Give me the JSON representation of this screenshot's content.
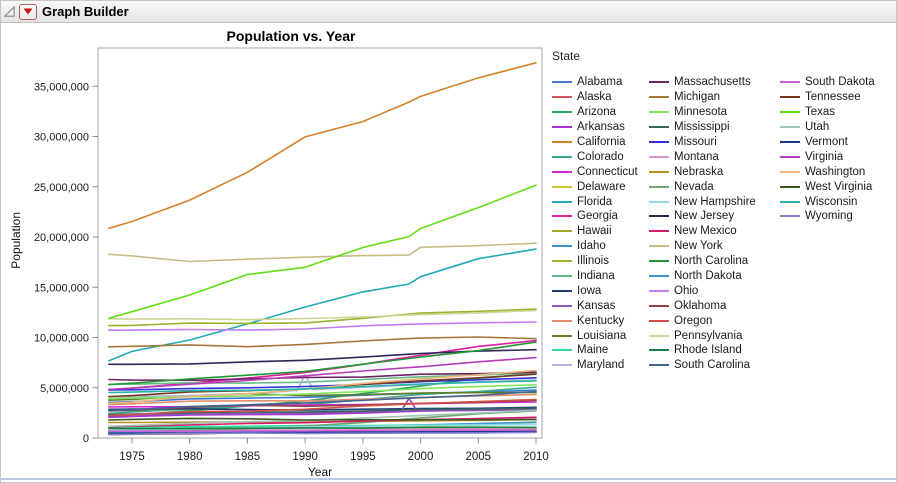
{
  "header": {
    "title": "Graph Builder"
  },
  "chart_data": {
    "type": "line",
    "title": "Population vs. Year",
    "xlabel": "Year",
    "ylabel": "Population",
    "legend_title": "State",
    "legend_position": "right",
    "grid": false,
    "xlim": [
      1972,
      2010.6
    ],
    "ylim": [
      0,
      38800000
    ],
    "x_ticks": [
      1975,
      1980,
      1985,
      1990,
      1995,
      2000,
      2005,
      2010
    ],
    "y_ticks": [
      0,
      5000000,
      10000000,
      15000000,
      20000000,
      25000000,
      30000000,
      35000000
    ],
    "y_tick_labels": [
      "0",
      "5,000,000",
      "10,000,000",
      "15,000,000",
      "20,000,000",
      "25,000,000",
      "30,000,000",
      "35,000,000"
    ],
    "years": [
      1973,
      1975,
      1980,
      1985,
      1990,
      1995,
      1999,
      2000,
      2005,
      2010
    ],
    "series": [
      {
        "name": "Alabama",
        "color": "#4573D2",
        "values": [
          3540000,
          3610000,
          3890000,
          3970000,
          4050000,
          4260000,
          4410000,
          4450000,
          4570000,
          4780000
        ]
      },
      {
        "name": "Alaska",
        "color": "#D4525A",
        "values": [
          330000,
          380000,
          400000,
          530000,
          550000,
          600000,
          620000,
          630000,
          660000,
          710000
        ]
      },
      {
        "name": "Arizona",
        "color": "#2AA458",
        "values": [
          2120000,
          2280000,
          2720000,
          3180000,
          3680000,
          4430000,
          5010000,
          5160000,
          5940000,
          6410000
        ]
      },
      {
        "name": "Arkansas",
        "color": "#AE2FD6",
        "values": [
          2060000,
          2140000,
          2290000,
          2330000,
          2350000,
          2480000,
          2640000,
          2680000,
          2780000,
          2920000
        ]
      },
      {
        "name": "California",
        "color": "#D4812C",
        "values": [
          20870000,
          21540000,
          23670000,
          26440000,
          29960000,
          31490000,
          33420000,
          33990000,
          35830000,
          37330000
        ]
      },
      {
        "name": "Colorado",
        "color": "#2FAE93",
        "values": [
          2450000,
          2590000,
          2890000,
          3210000,
          3300000,
          3810000,
          4230000,
          4330000,
          4630000,
          5050000
        ]
      },
      {
        "name": "Connecticut",
        "color": "#D326D9",
        "values": [
          3080000,
          3100000,
          3110000,
          3200000,
          3290000,
          3320000,
          3390000,
          3410000,
          3510000,
          3580000
        ]
      },
      {
        "name": "Delaware",
        "color": "#D2C42E",
        "values": [
          570000,
          580000,
          590000,
          620000,
          670000,
          720000,
          770000,
          790000,
          850000,
          900000
        ]
      },
      {
        "name": "Florida",
        "color": "#24A8B4",
        "values": [
          7680000,
          8620000,
          9750000,
          11350000,
          13030000,
          14540000,
          15320000,
          16050000,
          17840000,
          18800000
        ]
      },
      {
        "name": "Georgia",
        "color": "#DE1E9E",
        "values": [
          4790000,
          4960000,
          5460000,
          5960000,
          6510000,
          7330000,
          8050000,
          8230000,
          9110000,
          9690000
        ]
      },
      {
        "name": "Hawaii",
        "color": "#A5A524",
        "values": [
          840000,
          870000,
          960000,
          1040000,
          1110000,
          1180000,
          1200000,
          1210000,
          1290000,
          1360000
        ]
      },
      {
        "name": "Idaho",
        "color": "#3B94CE",
        "values": [
          770000,
          820000,
          940000,
          1000000,
          1010000,
          1180000,
          1280000,
          1300000,
          1430000,
          1570000
        ]
      },
      {
        "name": "Illinois",
        "color": "#97B42C",
        "values": [
          11180000,
          11200000,
          11430000,
          11400000,
          11450000,
          11910000,
          12330000,
          12430000,
          12610000,
          12830000
        ]
      },
      {
        "name": "Indiana",
        "color": "#63BB86",
        "values": [
          5320000,
          5350000,
          5490000,
          5460000,
          5550000,
          5820000,
          6040000,
          6090000,
          6260000,
          6480000
        ]
      },
      {
        "name": "Iowa",
        "color": "#1D3D78",
        "values": [
          2860000,
          2880000,
          2910000,
          2830000,
          2780000,
          2870000,
          2920000,
          2930000,
          2960000,
          3050000
        ]
      },
      {
        "name": "Kansas",
        "color": "#9051BA",
        "values": [
          2260000,
          2280000,
          2370000,
          2430000,
          2480000,
          2580000,
          2670000,
          2690000,
          2740000,
          2850000
        ]
      },
      {
        "name": "Kentucky",
        "color": "#E38C6C",
        "values": [
          3310000,
          3400000,
          3660000,
          3700000,
          3690000,
          3860000,
          4000000,
          4040000,
          4180000,
          4340000
        ]
      },
      {
        "name": "Louisiana",
        "color": "#5D7E27",
        "values": [
          3760000,
          3840000,
          4210000,
          4410000,
          4220000,
          4330000,
          4440000,
          4470000,
          4520000,
          4530000
        ]
      },
      {
        "name": "Maine",
        "color": "#30DE9C",
        "values": [
          1030000,
          1060000,
          1120000,
          1160000,
          1230000,
          1240000,
          1260000,
          1270000,
          1320000,
          1330000
        ]
      },
      {
        "name": "Maryland",
        "color": "#AFB4DE",
        "values": [
          4070000,
          4120000,
          4220000,
          4410000,
          4780000,
          5040000,
          5260000,
          5310000,
          5590000,
          5770000
        ]
      },
      {
        "name": "Massachusetts",
        "color": "#6D2361",
        "values": [
          5820000,
          5760000,
          5740000,
          5880000,
          6020000,
          6060000,
          6290000,
          6350000,
          6400000,
          6550000
        ]
      },
      {
        "name": "Michigan",
        "color": "#A8763A",
        "values": [
          9070000,
          9120000,
          9260000,
          9080000,
          9310000,
          9660000,
          9890000,
          9940000,
          10050000,
          9880000
        ]
      },
      {
        "name": "Minnesota",
        "color": "#82E55A",
        "values": [
          3910000,
          3970000,
          4080000,
          4190000,
          4380000,
          4620000,
          4860000,
          4920000,
          5110000,
          5300000
        ]
      },
      {
        "name": "Mississippi",
        "color": "#34655F",
        "values": [
          2320000,
          2390000,
          2520000,
          2590000,
          2580000,
          2690000,
          2810000,
          2840000,
          2900000,
          2970000
        ]
      },
      {
        "name": "Missouri",
        "color": "#3232D8",
        "values": [
          4790000,
          4800000,
          4920000,
          5000000,
          5120000,
          5320000,
          5540000,
          5600000,
          5790000,
          5990000
        ]
      },
      {
        "name": "Montana",
        "color": "#DE90CC",
        "values": [
          720000,
          750000,
          790000,
          820000,
          800000,
          870000,
          890000,
          900000,
          940000,
          990000
        ]
      },
      {
        "name": "Nebraska",
        "color": "#BF8E20",
        "values": [
          1540000,
          1540000,
          1570000,
          1590000,
          1580000,
          1660000,
          1700000,
          1710000,
          1760000,
          1830000
        ]
      },
      {
        "name": "Nevada",
        "color": "#6FA66F",
        "values": [
          550000,
          590000,
          800000,
          940000,
          1200000,
          1530000,
          1910000,
          2000000,
          2410000,
          2700000
        ]
      },
      {
        "name": "New Hampshire",
        "color": "#90DCE8",
        "values": [
          790000,
          820000,
          920000,
          1000000,
          1110000,
          1150000,
          1220000,
          1240000,
          1300000,
          1320000
        ]
      },
      {
        "name": "New Jersey",
        "color": "#2E2656",
        "values": [
          7330000,
          7330000,
          7370000,
          7570000,
          7730000,
          8050000,
          8340000,
          8410000,
          8650000,
          8790000
        ]
      },
      {
        "name": "New Mexico",
        "color": "#D81A6C",
        "values": [
          1110000,
          1160000,
          1300000,
          1440000,
          1520000,
          1680000,
          1790000,
          1820000,
          1930000,
          2060000
        ]
      },
      {
        "name": "New York",
        "color": "#C6BD86",
        "values": [
          18280000,
          18120000,
          17560000,
          17790000,
          17990000,
          18150000,
          18200000,
          18980000,
          19130000,
          19380000
        ]
      },
      {
        "name": "North Carolina",
        "color": "#209734",
        "values": [
          5320000,
          5450000,
          5880000,
          6250000,
          6630000,
          7340000,
          7910000,
          8050000,
          8700000,
          9540000
        ]
      },
      {
        "name": "North Dakota",
        "color": "#4492C4",
        "values": [
          630000,
          640000,
          650000,
          680000,
          640000,
          640000,
          640000,
          640000,
          640000,
          670000
        ]
      },
      {
        "name": "Ohio",
        "color": "#C07EF0",
        "values": [
          10730000,
          10740000,
          10800000,
          10740000,
          10850000,
          11160000,
          11310000,
          11350000,
          11460000,
          11540000
        ]
      },
      {
        "name": "Oklahoma",
        "color": "#8F4348",
        "values": [
          2690000,
          2750000,
          3030000,
          3270000,
          3150000,
          3280000,
          3420000,
          3450000,
          3550000,
          3750000
        ]
      },
      {
        "name": "Oregon",
        "color": "#D65048",
        "values": [
          2230000,
          2330000,
          2630000,
          2670000,
          2860000,
          3180000,
          3370000,
          3420000,
          3630000,
          3830000
        ]
      },
      {
        "name": "Pennsylvania",
        "color": "#CCD699",
        "values": [
          11870000,
          11830000,
          11860000,
          11770000,
          11880000,
          12040000,
          12230000,
          12280000,
          12450000,
          12700000
        ]
      },
      {
        "name": "Rhode Island",
        "color": "#188040",
        "values": [
          970000,
          930000,
          950000,
          970000,
          1000000,
          990000,
          1040000,
          1050000,
          1070000,
          1050000
        ]
      },
      {
        "name": "South Carolina",
        "color": "#406492",
        "values": [
          2730000,
          2820000,
          3120000,
          3300000,
          3490000,
          3750000,
          3960000,
          4010000,
          4250000,
          4630000
        ]
      },
      {
        "name": "South Dakota",
        "color": "#CC60D6",
        "values": [
          680000,
          680000,
          690000,
          700000,
          700000,
          730000,
          750000,
          750000,
          780000,
          810000
        ]
      },
      {
        "name": "Tennessee",
        "color": "#743A20",
        "values": [
          4130000,
          4220000,
          4590000,
          4710000,
          4880000,
          5330000,
          5620000,
          5690000,
          5990000,
          6350000
        ]
      },
      {
        "name": "Texas",
        "color": "#64DD13",
        "values": [
          11910000,
          12570000,
          14230000,
          16270000,
          16990000,
          18960000,
          20040000,
          20850000,
          22930000,
          25150000
        ]
      },
      {
        "name": "Utah",
        "color": "#A0C4B5",
        "values": [
          1160000,
          1230000,
          1460000,
          1640000,
          1720000,
          1980000,
          2180000,
          2230000,
          2490000,
          2760000
        ]
      },
      {
        "name": "Vermont",
        "color": "#203389",
        "values": [
          460000,
          470000,
          510000,
          530000,
          560000,
          580000,
          600000,
          610000,
          620000,
          630000
        ]
      },
      {
        "name": "Virginia",
        "color": "#B73CBB",
        "values": [
          4840000,
          4970000,
          5350000,
          5720000,
          6190000,
          6670000,
          7000000,
          7080000,
          7580000,
          8000000
        ]
      },
      {
        "name": "Washington",
        "color": "#ECB678",
        "values": [
          3440000,
          3560000,
          4130000,
          4400000,
          4870000,
          5430000,
          5800000,
          5890000,
          6290000,
          6720000
        ]
      },
      {
        "name": "West Virginia",
        "color": "#3E5824",
        "values": [
          1790000,
          1850000,
          1950000,
          1910000,
          1790000,
          1820000,
          1810000,
          1810000,
          1820000,
          1850000
        ]
      },
      {
        "name": "Wisconsin",
        "color": "#28B5A6",
        "values": [
          4520000,
          4570000,
          4710000,
          4750000,
          4890000,
          5120000,
          5310000,
          5360000,
          5540000,
          5690000
        ]
      },
      {
        "name": "Wyoming",
        "color": "#8282D0",
        "values": [
          350000,
          370000,
          470000,
          500000,
          450000,
          480000,
          490000,
          490000,
          510000,
          560000
        ]
      }
    ],
    "anomalies": [
      {
        "series": "Maryland",
        "year": 1990,
        "peak": 6280000,
        "half_width_years": 0.7
      },
      {
        "series": "Kansas",
        "year": 1999,
        "peak": 3950000,
        "half_width_years": 0.7
      }
    ]
  }
}
